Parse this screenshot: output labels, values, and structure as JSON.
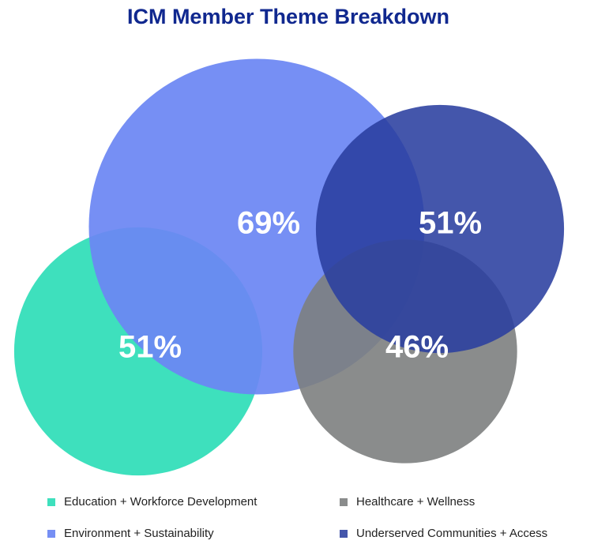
{
  "chart_data": {
    "type": "venn",
    "title": "ICM Member Theme Breakdown",
    "categories": [
      "Education + Workforce Development",
      "Environment + Sustainability",
      "Healthcare + Wellness",
      "Underserved Communities + Access"
    ],
    "values": [
      51,
      69,
      46,
      51
    ],
    "value_labels": [
      "51%",
      "69%",
      "46%",
      "51%"
    ],
    "colors": [
      "#3ee0bd",
      "#6c86f3",
      "#7d807f",
      "#2a3f9f"
    ]
  }
}
